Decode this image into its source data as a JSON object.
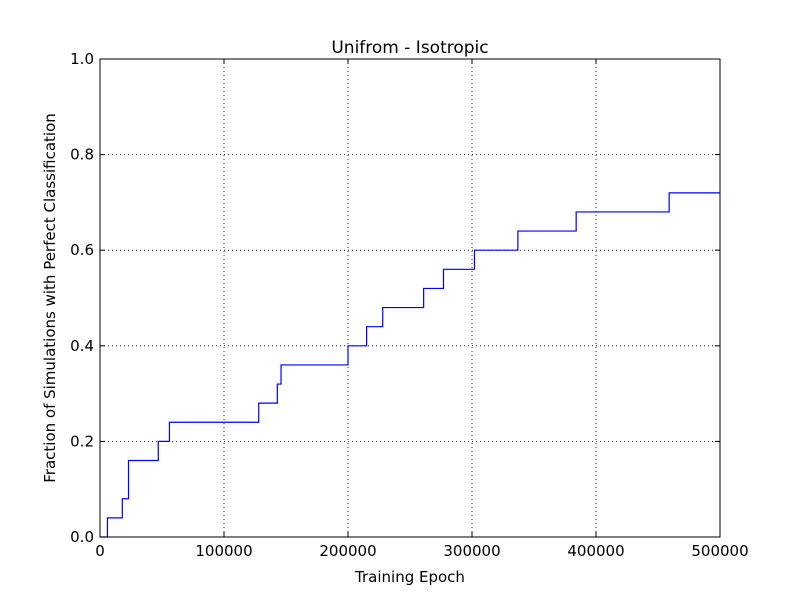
{
  "chart_data": {
    "type": "line",
    "title": "Unifrom - Isotropic",
    "xlabel": "Training Epoch",
    "ylabel": "Fraction of Simulations with Perfect Classification",
    "xlim": [
      0,
      500000
    ],
    "ylim": [
      0.0,
      1.0
    ],
    "xticks": [
      0,
      100000,
      200000,
      300000,
      400000,
      500000
    ],
    "xtick_labels": [
      "0",
      "100000",
      "200000",
      "300000",
      "400000",
      "500000"
    ],
    "yticks": [
      0.0,
      0.2,
      0.4,
      0.6,
      0.8,
      1.0
    ],
    "ytick_labels": [
      "0.0",
      "0.2",
      "0.4",
      "0.6",
      "0.8",
      "1.0"
    ],
    "grid": true,
    "series": [
      {
        "color": "#0000ff",
        "step": "post",
        "x": [
          0,
          6000,
          18000,
          23000,
          47000,
          56000,
          128000,
          143000,
          146000,
          200000,
          215000,
          228000,
          261000,
          277000,
          302000,
          337000,
          384000,
          459000,
          500000
        ],
        "y": [
          0.0,
          0.04,
          0.08,
          0.16,
          0.2,
          0.24,
          0.28,
          0.32,
          0.36,
          0.4,
          0.44,
          0.48,
          0.52,
          0.56,
          0.6,
          0.64,
          0.68,
          0.72,
          0.72
        ]
      }
    ]
  }
}
